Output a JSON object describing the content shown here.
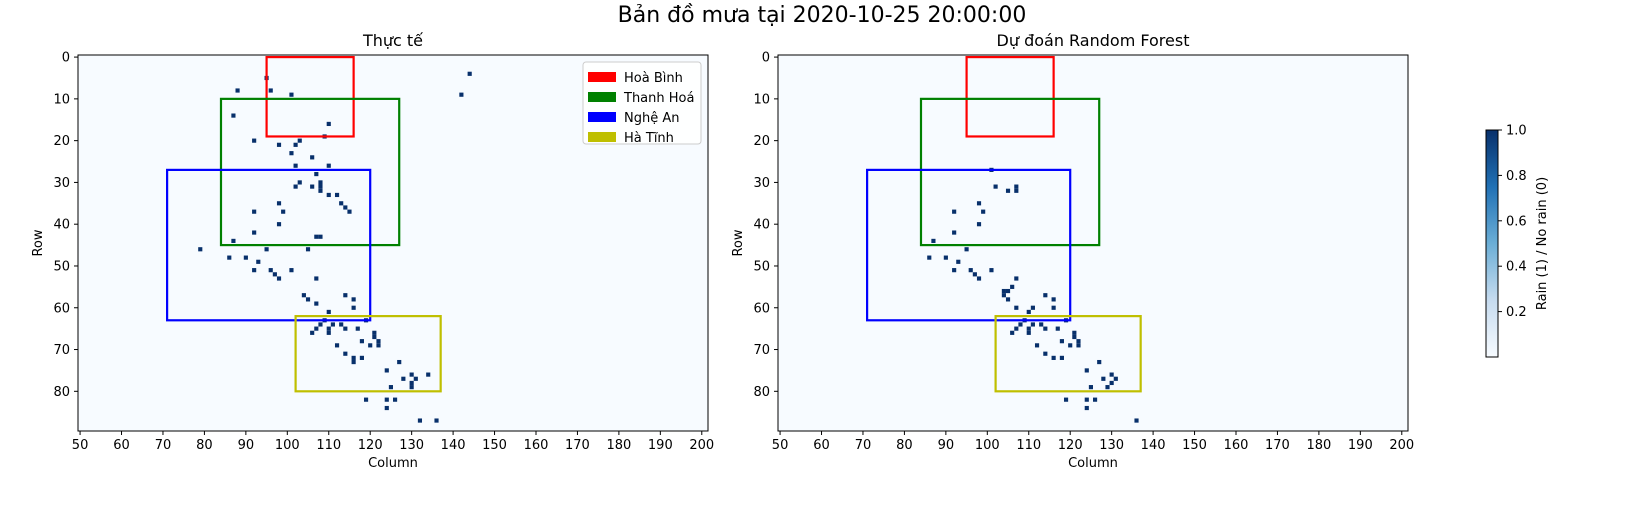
{
  "figure": {
    "title": "Bản đồ mưa tại 2020-10-25 20:00:00"
  },
  "colors": {
    "rain": "#08306b",
    "no_rain": "#f7fbff",
    "region_colors": [
      "#ff0000",
      "#008000",
      "#0000ff",
      "#bfbf00"
    ]
  },
  "regions": [
    {
      "name": "Hoà Bình",
      "color": "#ff0000",
      "col_range": [
        95,
        116
      ],
      "row_range": [
        0,
        19
      ]
    },
    {
      "name": "Thanh Hoá",
      "color": "#008000",
      "col_range": [
        84,
        127
      ],
      "row_range": [
        10,
        45
      ]
    },
    {
      "name": "Nghệ An",
      "color": "#0000ff",
      "col_range": [
        71,
        120
      ],
      "row_range": [
        27,
        63
      ]
    },
    {
      "name": "Hà Tĩnh",
      "color": "#bfbf00",
      "col_range": [
        102,
        137
      ],
      "row_range": [
        62,
        80
      ]
    }
  ],
  "chart_data": [
    {
      "type": "heatmap",
      "title": "Thực tế",
      "xlabel": "Column",
      "ylabel": "Row",
      "xlim": [
        49.5,
        201.5
      ],
      "ylim": [
        89.5,
        -0.5
      ],
      "xticks": [
        50,
        60,
        70,
        80,
        90,
        100,
        110,
        120,
        130,
        140,
        150,
        160,
        170,
        180,
        190,
        200
      ],
      "yticks": [
        0,
        10,
        20,
        30,
        40,
        50,
        60,
        70,
        80
      ],
      "legend": {
        "placement": "top-right",
        "entries": [
          "Hoà Bình",
          "Thanh Hoá",
          "Nghệ An",
          "Hà Tĩnh"
        ]
      },
      "rain_cells": [
        [
          144,
          4
        ],
        [
          95,
          5
        ],
        [
          88,
          8
        ],
        [
          96,
          8
        ],
        [
          101,
          9
        ],
        [
          142,
          9
        ],
        [
          87,
          14
        ],
        [
          110,
          16
        ],
        [
          109,
          19
        ],
        [
          92,
          20
        ],
        [
          103,
          20
        ],
        [
          98,
          21
        ],
        [
          102,
          21
        ],
        [
          101,
          23
        ],
        [
          106,
          24
        ],
        [
          102,
          26
        ],
        [
          110,
          26
        ],
        [
          107,
          28
        ],
        [
          103,
          30
        ],
        [
          108,
          30
        ],
        [
          102,
          31
        ],
        [
          106,
          31
        ],
        [
          108,
          31
        ],
        [
          108,
          32
        ],
        [
          110,
          33
        ],
        [
          112,
          33
        ],
        [
          113,
          35
        ],
        [
          98,
          35
        ],
        [
          92,
          37
        ],
        [
          99,
          37
        ],
        [
          114,
          36
        ],
        [
          115,
          37
        ],
        [
          98,
          40
        ],
        [
          92,
          42
        ],
        [
          107,
          43
        ],
        [
          108,
          43
        ],
        [
          87,
          44
        ],
        [
          95,
          46
        ],
        [
          105,
          46
        ],
        [
          79,
          46
        ],
        [
          86,
          48
        ],
        [
          90,
          48
        ],
        [
          93,
          49
        ],
        [
          92,
          51
        ],
        [
          96,
          51
        ],
        [
          97,
          52
        ],
        [
          101,
          51
        ],
        [
          98,
          53
        ],
        [
          107,
          53
        ],
        [
          104,
          57
        ],
        [
          105,
          58
        ],
        [
          114,
          57
        ],
        [
          116,
          58
        ],
        [
          107,
          59
        ],
        [
          110,
          61
        ],
        [
          116,
          60
        ],
        [
          109,
          63
        ],
        [
          111,
          64
        ],
        [
          113,
          64
        ],
        [
          119,
          63
        ],
        [
          106,
          66
        ],
        [
          107,
          65
        ],
        [
          108,
          64
        ],
        [
          110,
          65
        ],
        [
          110,
          66
        ],
        [
          114,
          65
        ],
        [
          117,
          65
        ],
        [
          121,
          66
        ],
        [
          118,
          68
        ],
        [
          121,
          67
        ],
        [
          112,
          69
        ],
        [
          120,
          69
        ],
        [
          122,
          68
        ],
        [
          122,
          69
        ],
        [
          114,
          71
        ],
        [
          116,
          72
        ],
        [
          116,
          73
        ],
        [
          118,
          72
        ],
        [
          127,
          73
        ],
        [
          124,
          75
        ],
        [
          130,
          76
        ],
        [
          134,
          76
        ],
        [
          128,
          77
        ],
        [
          131,
          77
        ],
        [
          130,
          78
        ],
        [
          125,
          79
        ],
        [
          130,
          79
        ],
        [
          119,
          82
        ],
        [
          124,
          82
        ],
        [
          126,
          82
        ],
        [
          124,
          84
        ],
        [
          132,
          87
        ],
        [
          136,
          87
        ]
      ]
    },
    {
      "type": "heatmap",
      "title": "Dự đoán Random Forest",
      "xlabel": "Column",
      "ylabel": "Row",
      "xlim": [
        49.5,
        201.5
      ],
      "ylim": [
        89.5,
        -0.5
      ],
      "xticks": [
        50,
        60,
        70,
        80,
        90,
        100,
        110,
        120,
        130,
        140,
        150,
        160,
        170,
        180,
        190,
        200
      ],
      "yticks": [
        0,
        10,
        20,
        30,
        40,
        50,
        60,
        70,
        80
      ],
      "rain_cells": [
        [
          101,
          27
        ],
        [
          102,
          31
        ],
        [
          105,
          32
        ],
        [
          107,
          31
        ],
        [
          107,
          32
        ],
        [
          98,
          35
        ],
        [
          92,
          37
        ],
        [
          99,
          37
        ],
        [
          98,
          40
        ],
        [
          92,
          42
        ],
        [
          87,
          44
        ],
        [
          95,
          46
        ],
        [
          86,
          48
        ],
        [
          90,
          48
        ],
        [
          93,
          49
        ],
        [
          92,
          51
        ],
        [
          96,
          51
        ],
        [
          97,
          52
        ],
        [
          101,
          51
        ],
        [
          98,
          53
        ],
        [
          107,
          53
        ],
        [
          106,
          55
        ],
        [
          104,
          56
        ],
        [
          105,
          56
        ],
        [
          104,
          57
        ],
        [
          105,
          58
        ],
        [
          107,
          60
        ],
        [
          110,
          61
        ],
        [
          111,
          60
        ],
        [
          114,
          57
        ],
        [
          116,
          58
        ],
        [
          116,
          60
        ],
        [
          109,
          63
        ],
        [
          111,
          64
        ],
        [
          113,
          64
        ],
        [
          119,
          63
        ],
        [
          106,
          66
        ],
        [
          107,
          65
        ],
        [
          108,
          64
        ],
        [
          110,
          65
        ],
        [
          110,
          66
        ],
        [
          114,
          65
        ],
        [
          117,
          65
        ],
        [
          121,
          66
        ],
        [
          118,
          68
        ],
        [
          121,
          67
        ],
        [
          112,
          69
        ],
        [
          120,
          69
        ],
        [
          122,
          68
        ],
        [
          122,
          69
        ],
        [
          114,
          71
        ],
        [
          116,
          72
        ],
        [
          118,
          72
        ],
        [
          127,
          73
        ],
        [
          124,
          75
        ],
        [
          128,
          77
        ],
        [
          130,
          76
        ],
        [
          131,
          77
        ],
        [
          130,
          78
        ],
        [
          125,
          79
        ],
        [
          129,
          79
        ],
        [
          119,
          82
        ],
        [
          124,
          82
        ],
        [
          126,
          82
        ],
        [
          124,
          84
        ],
        [
          136,
          87
        ]
      ]
    }
  ],
  "colorbar": {
    "label": "Rain (1) / No rain (0)",
    "range": [
      0,
      1
    ],
    "ticks": [
      "1.0",
      "0.8",
      "0.6",
      "0.4",
      "0.2"
    ],
    "tick_values": [
      1.0,
      0.8,
      0.6,
      0.4,
      0.2
    ],
    "colors": [
      "#f7fbff",
      "#c6dbef",
      "#6baed6",
      "#2171b5",
      "#08306b"
    ]
  }
}
